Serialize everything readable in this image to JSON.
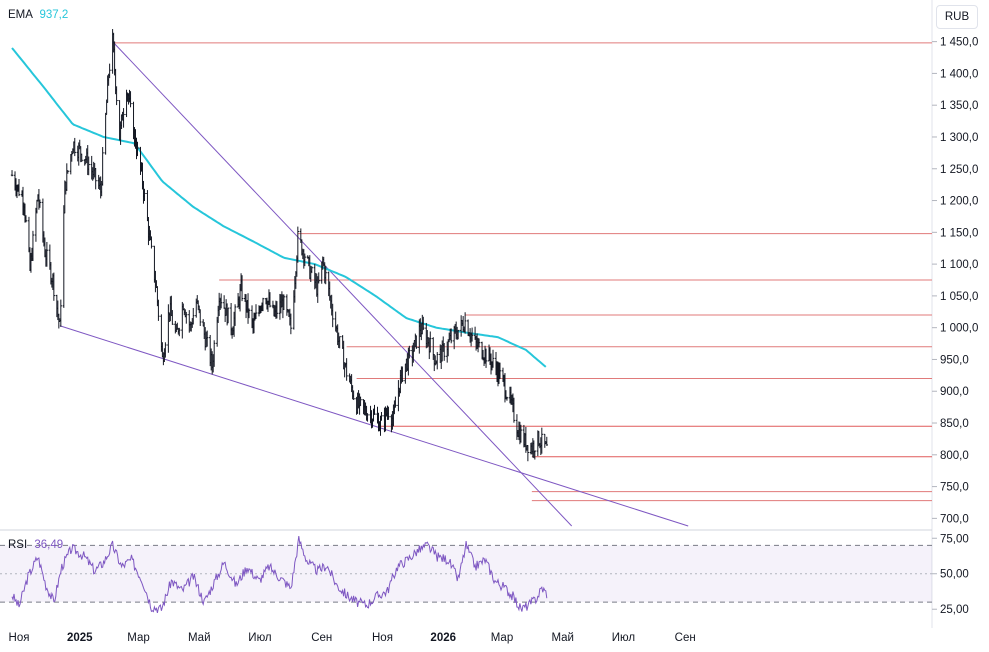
{
  "ema_legend": {
    "name": "EMA",
    "value": "937,2",
    "color": "#26c6da"
  },
  "rsi_legend": {
    "name": "RSI",
    "value": "36,49",
    "color": "#7e57c2"
  },
  "currency": "RUB",
  "chart_data": [
    {
      "type": "candlestick",
      "x_axis_labels": [
        "Ноя",
        "2025",
        "Мар",
        "Май",
        "Июл",
        "Сен",
        "Ноя",
        "2026",
        "Мар",
        "Май",
        "Июл",
        "Сен"
      ],
      "y_ticks": [
        "1 450,0",
        "1 400,0",
        "1 350,0",
        "1 300,0",
        "1 250,0",
        "1 200,0",
        "1 150,0",
        "1 100,0",
        "1 050,0",
        "1 000,0",
        "950,0",
        "900,0",
        "850,0",
        "800,0",
        "750,0",
        "700,0"
      ],
      "ylim": [
        688,
        1462
      ],
      "start_date": "2024-10-25",
      "end_date": "2026-04-15",
      "price_keypoints": [
        [
          "2024-10-25",
          1240
        ],
        [
          "2024-11-06",
          1200
        ],
        [
          "2024-11-12",
          1090
        ],
        [
          "2024-11-20",
          1210
        ],
        [
          "2024-11-27",
          1120
        ],
        [
          "2024-12-05",
          1075
        ],
        [
          "2024-12-12",
          1000
        ],
        [
          "2024-12-17",
          1220
        ],
        [
          "2024-12-25",
          1290
        ],
        [
          "2025-01-06",
          1270
        ],
        [
          "2025-01-15",
          1240
        ],
        [
          "2025-01-22",
          1215
        ],
        [
          "2025-01-30",
          1400
        ],
        [
          "2025-02-03",
          1450
        ],
        [
          "2025-02-10",
          1300
        ],
        [
          "2025-02-17",
          1380
        ],
        [
          "2025-02-24",
          1310
        ],
        [
          "2025-03-05",
          1230
        ],
        [
          "2025-03-12",
          1140
        ],
        [
          "2025-03-19",
          1060
        ],
        [
          "2025-03-25",
          950
        ],
        [
          "2025-04-01",
          1030
        ],
        [
          "2025-04-08",
          985
        ],
        [
          "2025-04-15",
          1040
        ],
        [
          "2025-04-22",
          1000
        ],
        [
          "2025-04-28",
          1040
        ],
        [
          "2025-05-06",
          990
        ],
        [
          "2025-05-14",
          940
        ],
        [
          "2025-05-21",
          1055
        ],
        [
          "2025-06-03",
          1000
        ],
        [
          "2025-06-12",
          1060
        ],
        [
          "2025-06-24",
          1000
        ],
        [
          "2025-07-05",
          1055
        ],
        [
          "2025-07-15",
          1020
        ],
        [
          "2025-07-24",
          1040
        ],
        [
          "2025-08-01",
          1000
        ],
        [
          "2025-08-08",
          1140
        ],
        [
          "2025-08-14",
          1120
        ],
        [
          "2025-08-20",
          1090
        ],
        [
          "2025-08-28",
          1060
        ],
        [
          "2025-09-02",
          1105
        ],
        [
          "2025-09-10",
          1040
        ],
        [
          "2025-09-18",
          980
        ],
        [
          "2025-09-26",
          930
        ],
        [
          "2025-10-06",
          880
        ],
        [
          "2025-10-14",
          870
        ],
        [
          "2025-10-24",
          860
        ],
        [
          "2025-10-30",
          848
        ],
        [
          "2025-11-07",
          870
        ],
        [
          "2025-11-12",
          855
        ],
        [
          "2025-11-16",
          900
        ],
        [
          "2025-11-23",
          940
        ],
        [
          "2025-12-01",
          960
        ],
        [
          "2025-12-09",
          1000
        ],
        [
          "2025-12-17",
          980
        ],
        [
          "2025-12-24",
          950
        ],
        [
          "2025-12-31",
          960
        ],
        [
          "2026-01-10",
          985
        ],
        [
          "2026-01-18",
          1000
        ],
        [
          "2026-01-23",
          1010
        ],
        [
          "2026-02-02",
          975
        ],
        [
          "2026-02-12",
          960
        ],
        [
          "2026-02-22",
          940
        ],
        [
          "2026-03-02",
          915
        ],
        [
          "2026-03-10",
          880
        ],
        [
          "2026-03-17",
          840
        ],
        [
          "2026-03-24",
          820
        ],
        [
          "2026-03-31",
          812
        ],
        [
          "2026-04-07",
          825
        ],
        [
          "2026-04-15",
          808
        ]
      ],
      "ema_keypoints": [
        [
          "2024-10-25",
          1440
        ],
        [
          "2024-11-25",
          1380
        ],
        [
          "2024-12-25",
          1320
        ],
        [
          "2025-01-25",
          1300
        ],
        [
          "2025-02-25",
          1290
        ],
        [
          "2025-03-25",
          1230
        ],
        [
          "2025-04-25",
          1190
        ],
        [
          "2025-05-25",
          1160
        ],
        [
          "2025-06-25",
          1135
        ],
        [
          "2025-07-25",
          1110
        ],
        [
          "2025-08-25",
          1100
        ],
        [
          "2025-09-25",
          1080
        ],
        [
          "2025-10-25",
          1050
        ],
        [
          "2025-11-25",
          1015
        ],
        [
          "2025-12-25",
          1000
        ],
        [
          "2026-01-25",
          992
        ],
        [
          "2026-02-25",
          985
        ],
        [
          "2026-03-25",
          965
        ],
        [
          "2026-04-15",
          937
        ]
      ],
      "horizontal_levels": [
        {
          "value": 1448,
          "color": "#e07a7a",
          "from": "2025-02-03"
        },
        {
          "value": 1148,
          "color": "#e07a7a",
          "from": "2025-08-08"
        },
        {
          "value": 1075,
          "color": "#e07a7a",
          "from": "2025-05-21"
        },
        {
          "value": 1020,
          "color": "#e07a7a",
          "from": "2026-01-23"
        },
        {
          "value": 970,
          "color": "#e07a7a",
          "from": "2025-09-26"
        },
        {
          "value": 920,
          "color": "#e07a7a",
          "from": "2025-10-06"
        },
        {
          "value": 845,
          "color": "#e05a5a",
          "from": "2025-10-30"
        },
        {
          "value": 797,
          "color": "#e05a5a",
          "from": "2026-03-31"
        },
        {
          "value": 742,
          "color": "#e07a7a",
          "from": "2026-03-31"
        },
        {
          "value": 728,
          "color": "#e07a7a",
          "from": "2026-03-31"
        }
      ],
      "trend_lines": [
        {
          "from": [
            "2025-02-03",
            1450
          ],
          "to": [
            "2026-05-10",
            688
          ],
          "color": "#7e57c2"
        },
        {
          "from": [
            "2024-12-12",
            1003
          ],
          "to": [
            "2026-09-04",
            688
          ],
          "color": "#7e57c2"
        }
      ]
    },
    {
      "type": "line",
      "name": "RSI",
      "y_ticks": [
        "75,00",
        "50,00",
        "25,00"
      ],
      "ylim": [
        16,
        78
      ],
      "band": [
        30,
        70
      ],
      "mid": 50,
      "rsi_keypoints": [
        [
          "2024-10-25",
          35
        ],
        [
          "2024-11-01",
          27
        ],
        [
          "2024-11-10",
          48
        ],
        [
          "2024-11-20",
          62
        ],
        [
          "2024-11-28",
          42
        ],
        [
          "2024-12-06",
          30
        ],
        [
          "2024-12-14",
          55
        ],
        [
          "2024-12-24",
          68
        ],
        [
          "2025-01-06",
          62
        ],
        [
          "2025-01-16",
          52
        ],
        [
          "2025-01-25",
          58
        ],
        [
          "2025-02-03",
          70
        ],
        [
          "2025-02-12",
          55
        ],
        [
          "2025-02-22",
          60
        ],
        [
          "2025-03-05",
          45
        ],
        [
          "2025-03-14",
          27
        ],
        [
          "2025-03-24",
          25
        ],
        [
          "2025-04-03",
          45
        ],
        [
          "2025-04-14",
          38
        ],
        [
          "2025-04-25",
          48
        ],
        [
          "2025-05-06",
          30
        ],
        [
          "2025-05-16",
          44
        ],
        [
          "2025-05-26",
          58
        ],
        [
          "2025-06-07",
          42
        ],
        [
          "2025-06-18",
          55
        ],
        [
          "2025-06-30",
          45
        ],
        [
          "2025-07-10",
          55
        ],
        [
          "2025-07-20",
          48
        ],
        [
          "2025-08-01",
          40
        ],
        [
          "2025-08-09",
          74
        ],
        [
          "2025-08-18",
          58
        ],
        [
          "2025-08-28",
          52
        ],
        [
          "2025-09-06",
          56
        ],
        [
          "2025-09-16",
          42
        ],
        [
          "2025-09-26",
          35
        ],
        [
          "2025-10-06",
          30
        ],
        [
          "2025-10-16",
          28
        ],
        [
          "2025-10-26",
          34
        ],
        [
          "2025-11-06",
          38
        ],
        [
          "2025-11-16",
          55
        ],
        [
          "2025-11-26",
          60
        ],
        [
          "2025-12-06",
          66
        ],
        [
          "2025-12-16",
          70
        ],
        [
          "2025-12-26",
          62
        ],
        [
          "2026-01-06",
          60
        ],
        [
          "2026-01-16",
          46
        ],
        [
          "2026-01-24",
          70
        ],
        [
          "2026-02-02",
          55
        ],
        [
          "2026-02-12",
          60
        ],
        [
          "2026-02-22",
          45
        ],
        [
          "2026-03-04",
          40
        ],
        [
          "2026-03-12",
          34
        ],
        [
          "2026-03-20",
          25
        ],
        [
          "2026-03-28",
          28
        ],
        [
          "2026-04-05",
          33
        ],
        [
          "2026-04-10",
          40
        ],
        [
          "2026-04-15",
          36
        ]
      ]
    }
  ]
}
